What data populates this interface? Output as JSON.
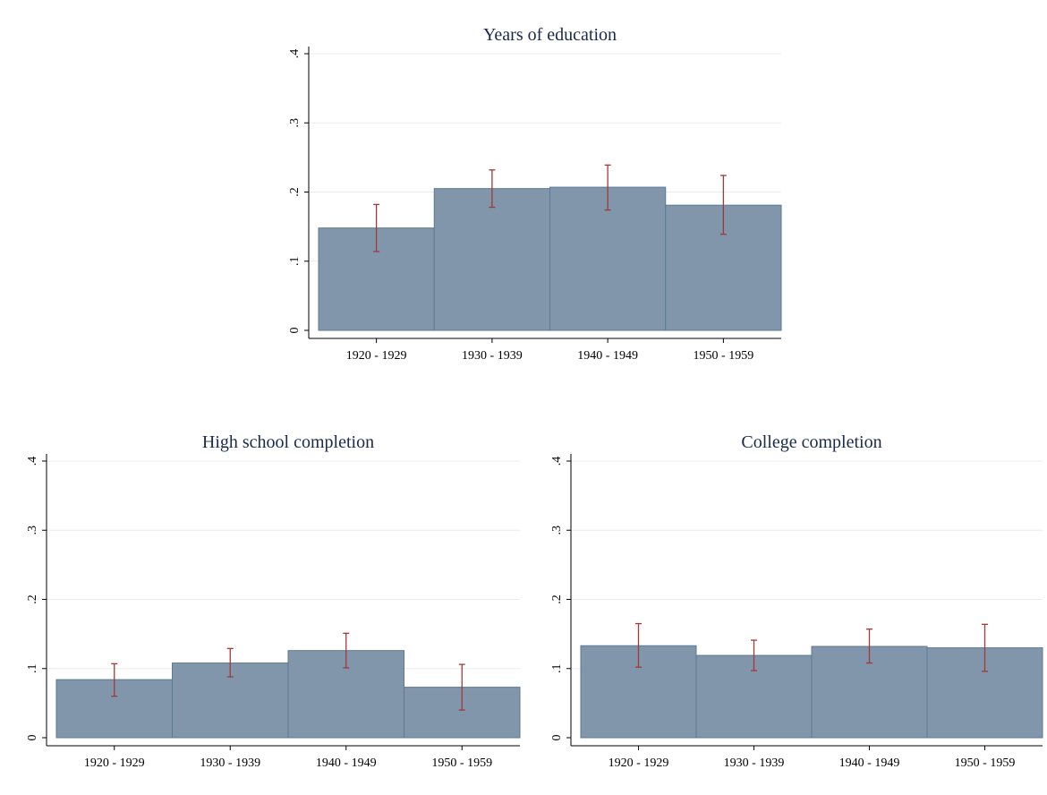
{
  "colors": {
    "bar": "#8196ab",
    "bar_edge": "#5d7a94",
    "error_bar": "#a03a3a",
    "title": "#1a2a4a",
    "grid": "#ececec"
  },
  "chart_data": [
    {
      "type": "bar",
      "title": "Years of education",
      "categories": [
        "1920 - 1929",
        "1930 - 1939",
        "1940 - 1949",
        "1950 - 1959"
      ],
      "values": [
        0.148,
        0.205,
        0.207,
        0.181
      ],
      "ci_low": [
        0.114,
        0.178,
        0.174,
        0.139
      ],
      "ci_high": [
        0.182,
        0.232,
        0.239,
        0.224
      ],
      "ylim": [
        0,
        0.4
      ],
      "yticks": [
        0,
        0.1,
        0.2,
        0.3,
        0.4
      ],
      "ytick_labels": [
        "0",
        ".1",
        ".2",
        ".3",
        ".4"
      ],
      "xlabel": "",
      "ylabel": "",
      "grid": true
    },
    {
      "type": "bar",
      "title": "High school completion",
      "categories": [
        "1920 - 1929",
        "1930 - 1939",
        "1940 - 1949",
        "1950 - 1959"
      ],
      "values": [
        0.084,
        0.108,
        0.126,
        0.073
      ],
      "ci_low": [
        0.06,
        0.088,
        0.101,
        0.04
      ],
      "ci_high": [
        0.107,
        0.129,
        0.151,
        0.106
      ],
      "ylim": [
        0,
        0.4
      ],
      "yticks": [
        0,
        0.1,
        0.2,
        0.3,
        0.4
      ],
      "ytick_labels": [
        "0",
        ".1",
        ".2",
        ".3",
        ".4"
      ],
      "xlabel": "",
      "ylabel": "",
      "grid": true
    },
    {
      "type": "bar",
      "title": "College completion",
      "categories": [
        "1920 - 1929",
        "1930 - 1939",
        "1940 - 1949",
        "1950 - 1959"
      ],
      "values": [
        0.133,
        0.119,
        0.132,
        0.13
      ],
      "ci_low": [
        0.102,
        0.097,
        0.108,
        0.096
      ],
      "ci_high": [
        0.165,
        0.141,
        0.157,
        0.164
      ],
      "ylim": [
        0,
        0.4
      ],
      "yticks": [
        0,
        0.1,
        0.2,
        0.3,
        0.4
      ],
      "ytick_labels": [
        "0",
        ".1",
        ".2",
        ".3",
        ".4"
      ],
      "xlabel": "",
      "ylabel": "",
      "grid": true
    }
  ]
}
